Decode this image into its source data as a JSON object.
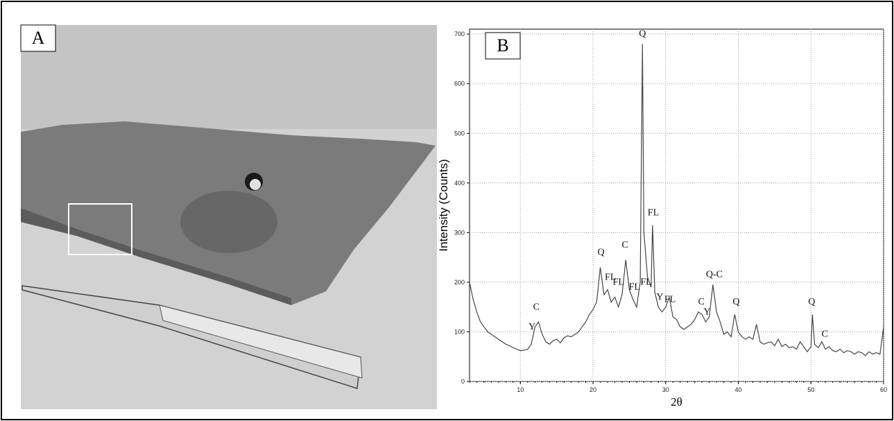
{
  "panels": {
    "a": "A",
    "b": "B"
  },
  "chart_data": {
    "type": "line",
    "color": "#444444",
    "y_label": "Intensity (Counts)",
    "x_label": "2θ",
    "xlim": [
      3,
      60
    ],
    "ylim": [
      0,
      710
    ],
    "xticks": [
      10,
      20,
      30,
      40,
      50,
      60
    ],
    "yticks": [
      0,
      100,
      200,
      300,
      400,
      500,
      600,
      700
    ],
    "grid": true,
    "x": [
      3,
      3.5,
      4,
      4.5,
      5,
      5.5,
      6,
      6.5,
      7,
      7.5,
      8,
      8.5,
      9,
      9.5,
      10,
      10.5,
      11,
      11.5,
      12,
      12.5,
      13,
      13.5,
      14,
      14.5,
      15,
      15.5,
      16,
      16.5,
      17,
      17.5,
      18,
      18.5,
      19,
      19.5,
      20,
      20.5,
      21,
      21.5,
      22,
      22.5,
      23,
      23.5,
      24,
      24.5,
      25,
      25.5,
      26,
      26.5,
      26.8,
      27,
      27.5,
      28,
      28.2,
      28.5,
      29,
      29.5,
      30,
      30.5,
      31,
      31.5,
      32,
      32.5,
      33,
      33.5,
      34,
      34.5,
      35,
      35.5,
      36,
      36.5,
      37,
      37.5,
      38,
      38.5,
      39,
      39.5,
      40,
      40.5,
      41,
      41.5,
      42,
      42.5,
      43,
      43.5,
      44,
      44.5,
      45,
      45.5,
      46,
      46.5,
      47,
      47.5,
      48,
      48.5,
      49,
      49.5,
      50,
      50.2,
      50.5,
      51,
      51.5,
      52,
      52.5,
      53,
      53.5,
      54,
      54.5,
      55,
      55.5,
      56,
      56.5,
      57,
      57.5,
      58,
      58.5,
      59,
      59.5,
      60
    ],
    "values": [
      200,
      165,
      140,
      120,
      110,
      100,
      95,
      90,
      85,
      80,
      75,
      72,
      68,
      65,
      62,
      63,
      65,
      75,
      110,
      120,
      95,
      80,
      75,
      82,
      85,
      78,
      88,
      92,
      90,
      95,
      100,
      110,
      120,
      135,
      145,
      160,
      230,
      175,
      185,
      160,
      170,
      150,
      175,
      245,
      185,
      165,
      150,
      200,
      680,
      300,
      210,
      190,
      315,
      180,
      150,
      140,
      150,
      170,
      130,
      125,
      110,
      105,
      110,
      115,
      125,
      140,
      135,
      120,
      130,
      195,
      140,
      120,
      95,
      100,
      90,
      135,
      100,
      90,
      85,
      90,
      85,
      115,
      80,
      75,
      78,
      80,
      72,
      85,
      70,
      75,
      68,
      70,
      65,
      80,
      70,
      60,
      70,
      135,
      75,
      68,
      80,
      65,
      70,
      62,
      60,
      65,
      58,
      62,
      60,
      55,
      60,
      58,
      52,
      60,
      55,
      58,
      55,
      110
    ],
    "annotations": [
      {
        "text": "Y",
        "x": 11.6,
        "y": 105
      },
      {
        "text": "C",
        "x": 12.2,
        "y": 145
      },
      {
        "text": "Q",
        "x": 21.1,
        "y": 255
      },
      {
        "text": "FL",
        "x": 22.4,
        "y": 205
      },
      {
        "text": "FL",
        "x": 23.5,
        "y": 195
      },
      {
        "text": "C",
        "x": 24.4,
        "y": 270
      },
      {
        "text": "FL",
        "x": 25.7,
        "y": 185
      },
      {
        "text": "Q",
        "x": 26.8,
        "y": 695
      },
      {
        "text": "FL",
        "x": 27.3,
        "y": 195
      },
      {
        "text": "FL",
        "x": 28.3,
        "y": 335
      },
      {
        "text": "Y",
        "x": 29.2,
        "y": 165
      },
      {
        "text": "FL",
        "x": 30.6,
        "y": 160
      },
      {
        "text": "C",
        "x": 34.9,
        "y": 155
      },
      {
        "text": "Y",
        "x": 35.7,
        "y": 135
      },
      {
        "text": "Q-C",
        "x": 36.7,
        "y": 210
      },
      {
        "text": "Q",
        "x": 39.7,
        "y": 155
      },
      {
        "text": "Q",
        "x": 50.1,
        "y": 155
      },
      {
        "text": "C",
        "x": 51.9,
        "y": 90
      }
    ]
  }
}
